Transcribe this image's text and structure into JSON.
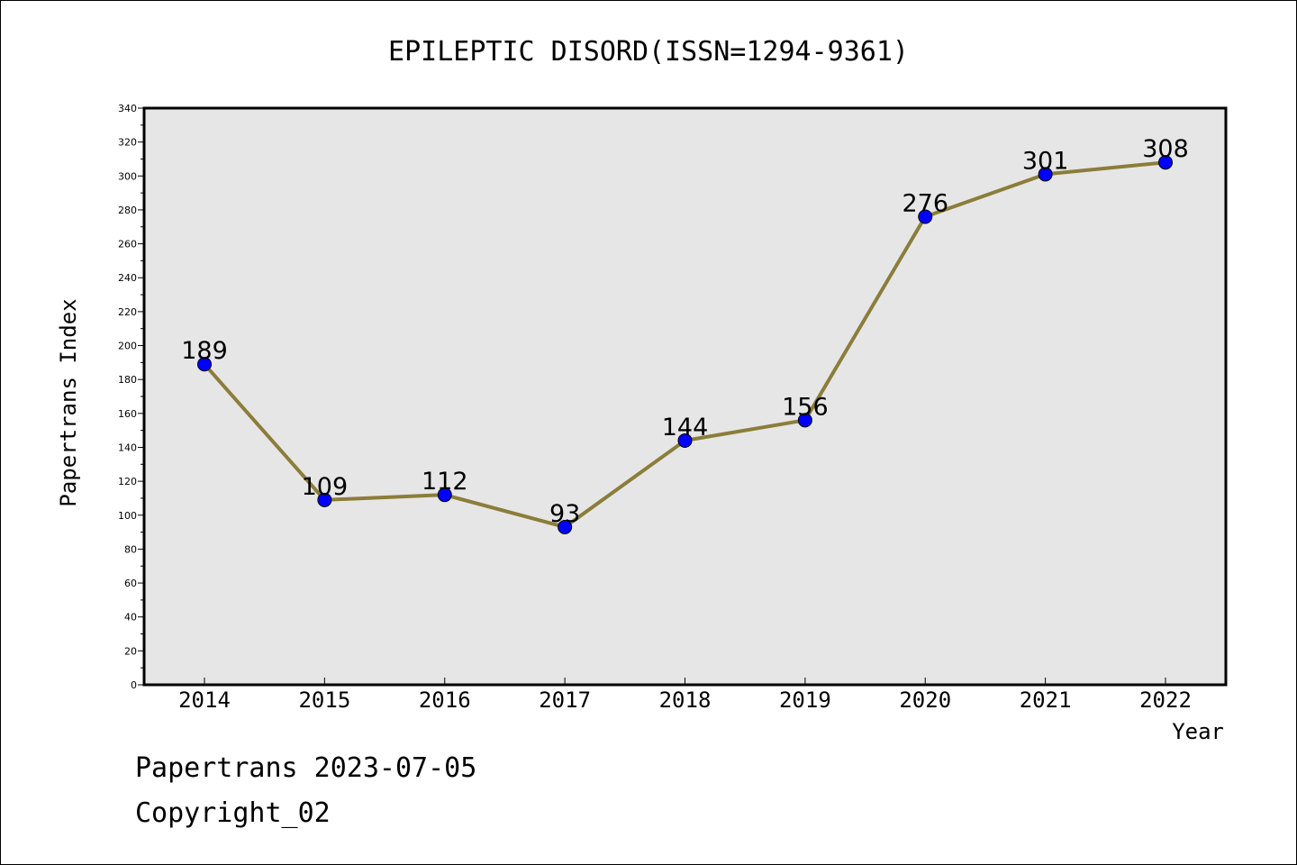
{
  "chart_data": {
    "type": "line",
    "title": "EPILEPTIC DISORD(ISSN=1294-9361)",
    "xlabel": "Year",
    "ylabel": "Papertrans Index",
    "categories": [
      "2014",
      "2015",
      "2016",
      "2017",
      "2018",
      "2019",
      "2020",
      "2021",
      "2022"
    ],
    "series": [
      {
        "values": [
          189,
          109,
          112,
          93,
          144,
          156,
          276,
          301,
          308
        ]
      }
    ],
    "data_labels": [
      "189",
      "109",
      "112",
      "93",
      "144",
      "156",
      "276",
      "301",
      "308"
    ],
    "ylim": [
      0,
      340
    ],
    "yticks": [
      0,
      20,
      40,
      60,
      80,
      100,
      120,
      140,
      160,
      180,
      200,
      220,
      240,
      260,
      280,
      300,
      320,
      340
    ],
    "grid": false,
    "legend": "none",
    "colors": {
      "line": "#8b7d3a",
      "marker": "#0000ff",
      "plot_background": "#e6e6e6"
    }
  },
  "footer": {
    "date_line": "Papertrans 2023-07-05",
    "copyright": "Copyright_02"
  }
}
